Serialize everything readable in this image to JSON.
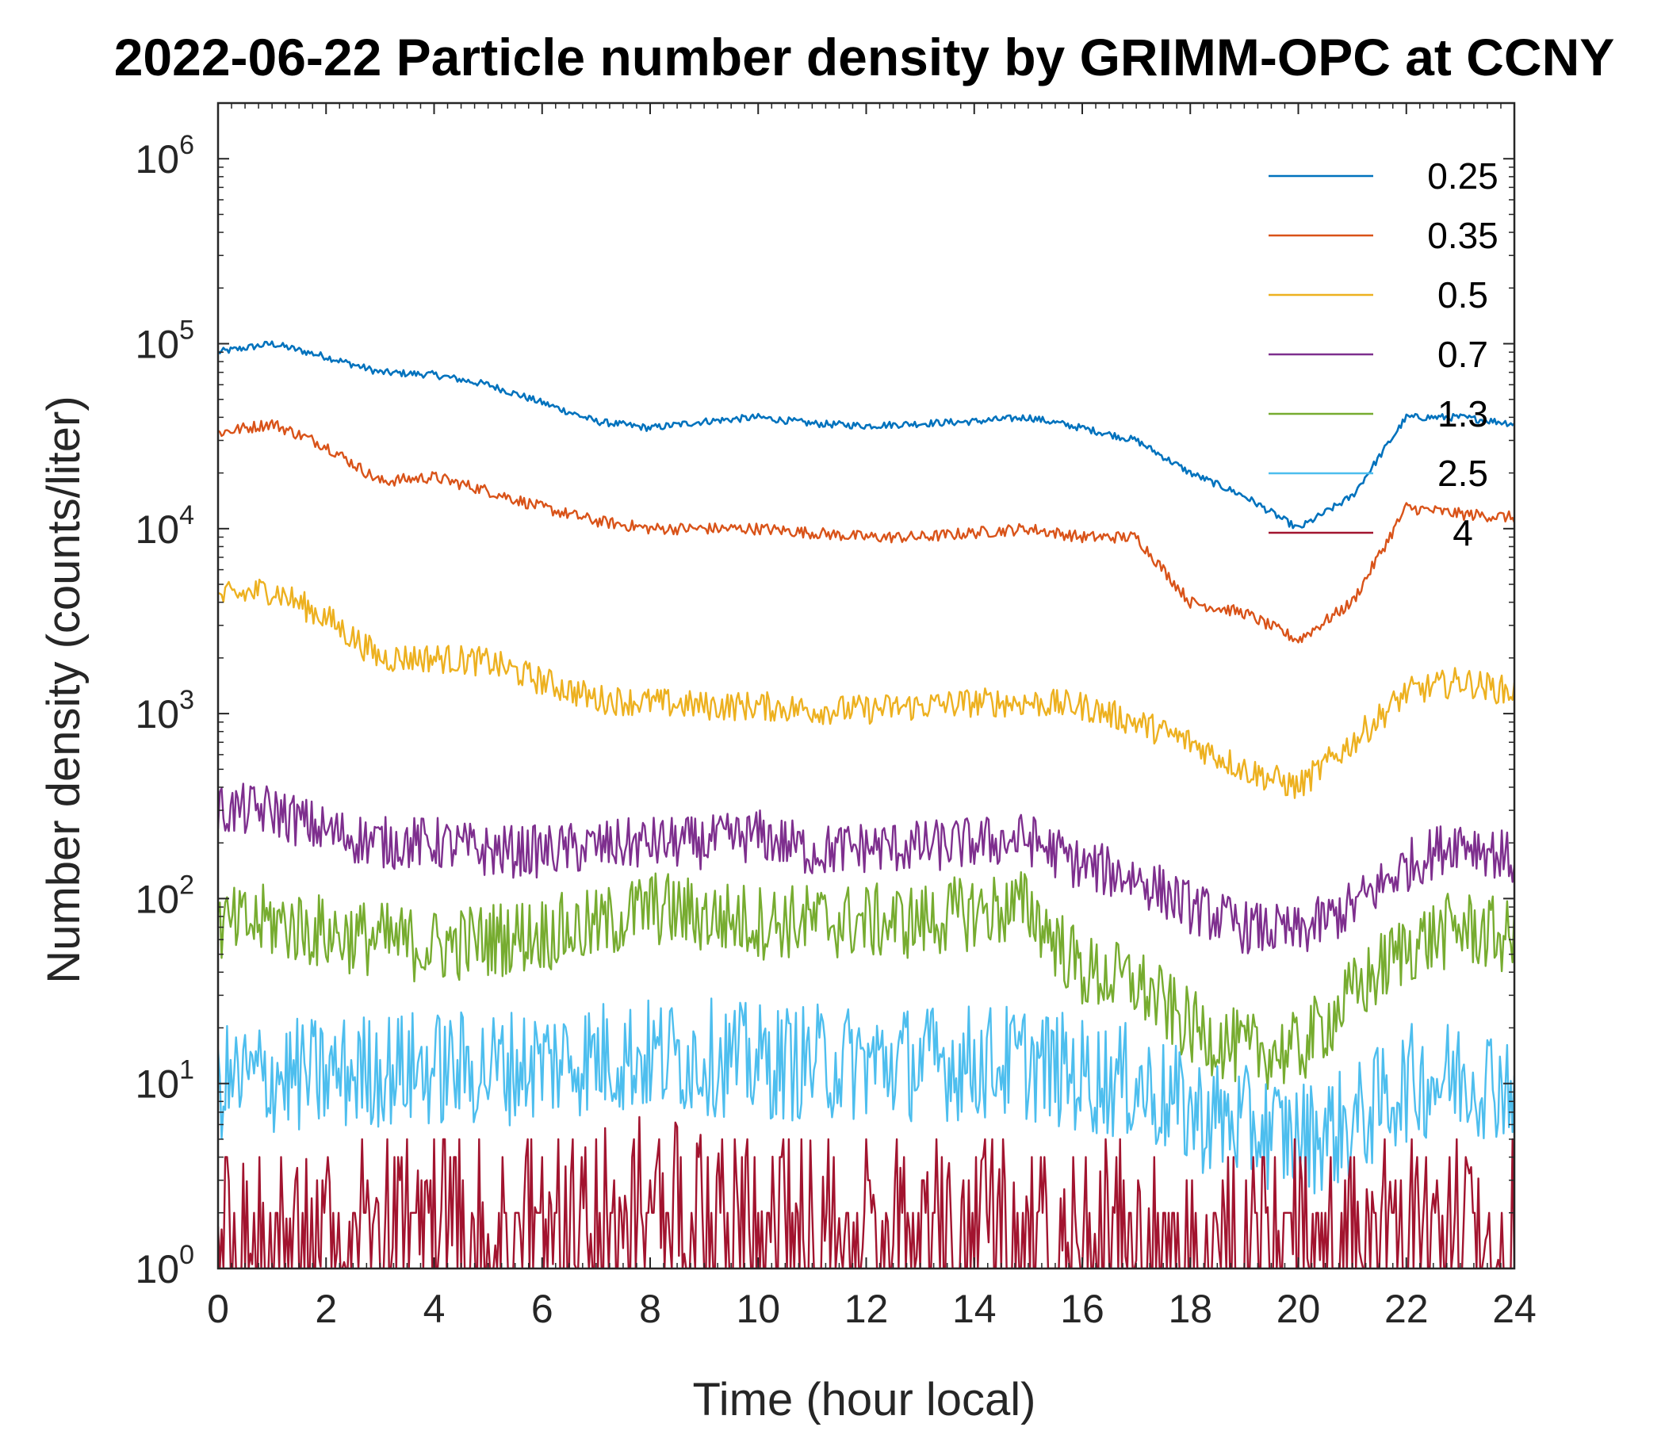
{
  "chart_data": {
    "type": "line",
    "title": "2022-06-22 Particle number density by GRIMM-OPC at CCNY",
    "xlabel": "Time (hour local)",
    "ylabel": "Number density (counts/liter)",
    "xlim": [
      0,
      24
    ],
    "ylim": [
      1,
      2000000
    ],
    "yscale": "log",
    "grid": false,
    "legend_position": "top-right",
    "x_ticks": [
      {
        "label": "0",
        "value": 0
      },
      {
        "label": "2",
        "value": 2
      },
      {
        "label": "4",
        "value": 4
      },
      {
        "label": "6",
        "value": 6
      },
      {
        "label": "8",
        "value": 8
      },
      {
        "label": "10",
        "value": 10
      },
      {
        "label": "12",
        "value": 12
      },
      {
        "label": "14",
        "value": 14
      },
      {
        "label": "16",
        "value": 16
      },
      {
        "label": "18",
        "value": 18
      },
      {
        "label": "20",
        "value": 20
      },
      {
        "label": "22",
        "value": 22
      },
      {
        "label": "24",
        "value": 24
      }
    ],
    "y_ticks": [
      {
        "base": "10",
        "exp": "0",
        "value": 1
      },
      {
        "base": "10",
        "exp": "1",
        "value": 10
      },
      {
        "base": "10",
        "exp": "2",
        "value": 100
      },
      {
        "base": "10",
        "exp": "3",
        "value": 1000
      },
      {
        "base": "10",
        "exp": "4",
        "value": 10000
      },
      {
        "base": "10",
        "exp": "5",
        "value": 100000
      },
      {
        "base": "10",
        "exp": "6",
        "value": 1000000
      }
    ],
    "x": [
      0,
      1,
      2,
      3,
      4,
      5,
      6,
      7,
      8,
      9,
      10,
      11,
      12,
      13,
      14,
      15,
      16,
      17,
      18,
      19,
      20,
      21,
      22,
      23,
      24
    ],
    "series": [
      {
        "name": "0.25",
        "color": "#0072BD",
        "values": [
          90000,
          100000,
          85000,
          70000,
          68000,
          60000,
          48000,
          38000,
          35000,
          38000,
          40000,
          37000,
          36000,
          37000,
          38000,
          40000,
          35000,
          30000,
          20000,
          15000,
          10000,
          15000,
          40000,
          40000,
          37000
        ]
      },
      {
        "name": "0.35",
        "color": "#D95319",
        "values": [
          33000,
          37000,
          28000,
          18000,
          19000,
          16000,
          13000,
          11000,
          10000,
          10000,
          10000,
          9500,
          9000,
          9000,
          9500,
          10000,
          9000,
          9000,
          4000,
          3500,
          2500,
          4000,
          13000,
          12000,
          11500
        ]
      },
      {
        "name": "0.5",
        "color": "#EDB120",
        "values": [
          4200,
          4700,
          3300,
          2000,
          2000,
          1900,
          1500,
          1200,
          1150,
          1100,
          1100,
          1050,
          1050,
          1100,
          1150,
          1150,
          1100,
          900,
          700,
          500,
          400,
          700,
          1300,
          1500,
          1300
        ]
      },
      {
        "name": "0.7",
        "color": "#7E2F8E",
        "values": [
          300,
          300,
          230,
          200,
          200,
          180,
          180,
          190,
          200,
          200,
          220,
          180,
          190,
          190,
          200,
          210,
          150,
          130,
          90,
          70,
          65,
          90,
          150,
          210,
          160
        ]
      },
      {
        "name": "1.3",
        "color": "#77AC30",
        "values": [
          70,
          75,
          65,
          60,
          55,
          60,
          65,
          70,
          90,
          80,
          75,
          75,
          75,
          75,
          85,
          90,
          40,
          35,
          20,
          15,
          15,
          30,
          55,
          70,
          60
        ]
      },
      {
        "name": "2.5",
        "color": "#4DBEEE",
        "values": [
          10,
          11,
          11,
          12,
          12,
          12,
          13,
          14,
          14,
          14,
          13,
          13,
          13,
          13,
          13,
          13,
          11,
          10,
          7,
          6,
          5,
          6,
          10,
          11,
          10
        ]
      },
      {
        "name": "4",
        "color": "#A2142F",
        "values": [
          2,
          1.8,
          1.5,
          1.5,
          1.5,
          1.5,
          2,
          2.3,
          3,
          2.8,
          2.5,
          2,
          1.8,
          1.8,
          1.8,
          2,
          1.5,
          1.2,
          1.2,
          1,
          1,
          1,
          1.5,
          1.5,
          1.5
        ]
      }
    ]
  }
}
